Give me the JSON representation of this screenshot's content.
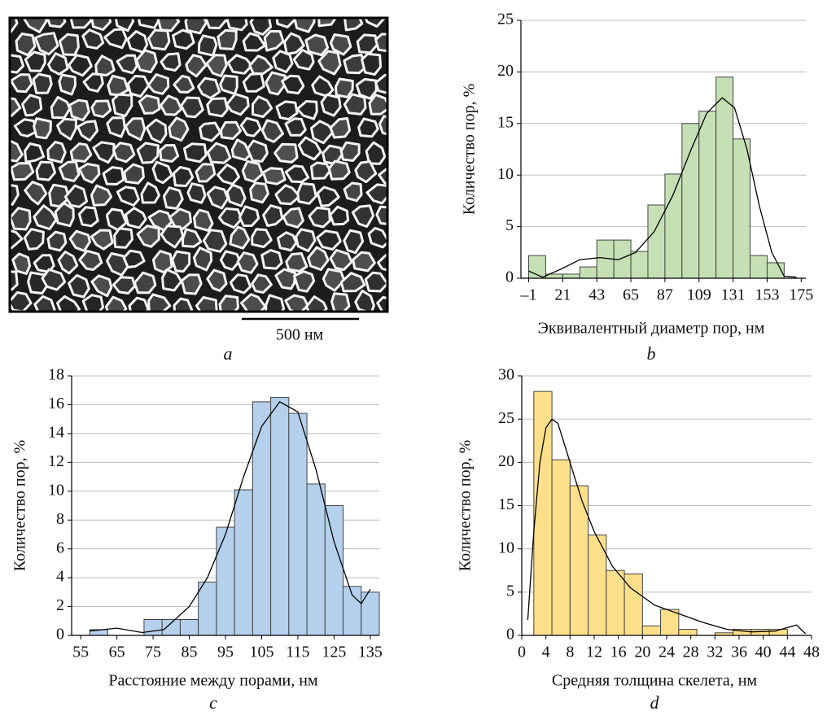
{
  "image_panel": {
    "scale_label": "500 нм",
    "caption": "a"
  },
  "chart_data": [
    {
      "type": "histogram",
      "caption": "b",
      "y_label": "Количество пор, %",
      "x_label": "Эквивалентный диаметр пор, нм",
      "bins": [
        -1,
        10,
        21,
        32,
        43,
        54,
        65,
        76,
        87,
        98,
        109,
        120,
        131,
        142,
        153,
        164
      ],
      "counts": [
        2.2,
        0.4,
        0.4,
        1.1,
        3.7,
        3.7,
        2.6,
        7.1,
        10.1,
        15.0,
        16.2,
        19.5,
        13.5,
        2.2,
        1.5
      ],
      "color": "#c5e0b4",
      "curve": {
        "x": [
          -1,
          8,
          20,
          32,
          45,
          57,
          68,
          80,
          92,
          104,
          114,
          124,
          132,
          140,
          148,
          156,
          164,
          172
        ],
        "y": [
          0.7,
          0.1,
          0.9,
          1.8,
          2.0,
          1.8,
          2.5,
          4.5,
          8.0,
          12.5,
          16.0,
          17.5,
          16.5,
          12.5,
          7.0,
          2.5,
          0.2,
          0.1
        ]
      },
      "xlim": [
        -6,
        178
      ],
      "ylim": [
        0,
        25
      ],
      "xticks": [
        {
          "value": -1,
          "label": "–1"
        },
        21,
        43,
        65,
        87,
        109,
        131,
        153,
        175
      ],
      "yticks": [
        0,
        5,
        10,
        15,
        20,
        25
      ],
      "grid": true
    },
    {
      "type": "histogram",
      "caption": "c",
      "y_label": "Количество пор, %",
      "x_label": "Расстояние между порами, нм",
      "bins": [
        57.5,
        62.5,
        67.5,
        72.5,
        77.5,
        82.5,
        87.5,
        92.5,
        97.5,
        102.5,
        107.5,
        112.5,
        117.5,
        122.5,
        127.5,
        132.5,
        137.5
      ],
      "counts": [
        0.4,
        0,
        0,
        1.1,
        1.1,
        1.1,
        3.7,
        7.5,
        10.1,
        16.2,
        16.5,
        15.4,
        10.5,
        9.0,
        3.4,
        3.0
      ],
      "color": "#b4d0ec",
      "curve": {
        "x": [
          57.5,
          65,
          72,
          78,
          85,
          90,
          95,
          100,
          105,
          110,
          115,
          120,
          125,
          130,
          132.5,
          135
        ],
        "y": [
          0.3,
          0.5,
          0.2,
          0.4,
          2.0,
          4.0,
          7.0,
          11.0,
          14.5,
          16.2,
          15.5,
          11.5,
          6.5,
          2.8,
          2.2,
          3.2
        ]
      },
      "xlim": [
        52.5,
        137.5
      ],
      "ylim": [
        0,
        18
      ],
      "xticks": [
        55,
        65,
        75,
        85,
        95,
        105,
        115,
        125,
        135
      ],
      "yticks": [
        0,
        2,
        4,
        6,
        8,
        10,
        12,
        14,
        16,
        18
      ],
      "grid": true
    },
    {
      "type": "histogram",
      "caption": "d",
      "y_label": "Количество пор, %",
      "x_label": "Средняя толщина скелета, нм",
      "bins": [
        2,
        5,
        8,
        11,
        14,
        17,
        20,
        23,
        26,
        29,
        32,
        35,
        38,
        41,
        44
      ],
      "counts": [
        28.2,
        20.3,
        17.3,
        11.6,
        7.5,
        7.1,
        1.1,
        3.0,
        0.7,
        0,
        0.3,
        0.7,
        0.7,
        0.7
      ],
      "color": "#ffe08a",
      "curve": {
        "x": [
          1,
          2,
          3,
          4,
          5,
          6,
          8,
          10,
          12,
          15,
          18,
          22,
          26,
          30,
          34,
          38,
          42,
          44,
          45.5,
          47
        ],
        "y": [
          1.8,
          12,
          20,
          24,
          25,
          24.5,
          20,
          15.5,
          12,
          8,
          5.5,
          3.5,
          2.5,
          1.5,
          0.7,
          0.4,
          0.5,
          0.9,
          1.2,
          0.2
        ]
      },
      "xlim": [
        0,
        48
      ],
      "ylim": [
        0,
        30
      ],
      "xticks": [
        0,
        4,
        8,
        12,
        16,
        20,
        24,
        28,
        32,
        36,
        40,
        44,
        48
      ],
      "yticks": [
        0,
        5,
        10,
        15,
        20,
        25,
        30
      ],
      "grid": true
    }
  ]
}
